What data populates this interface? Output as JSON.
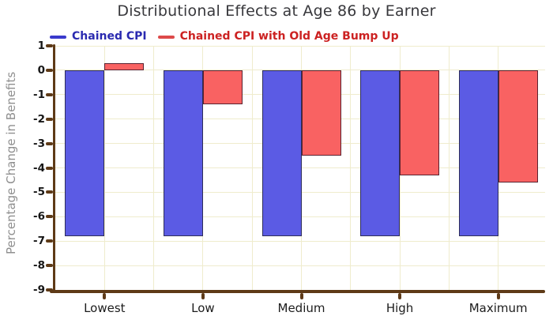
{
  "title": "Distributional Effects at Age 86 by Earner",
  "legend": {
    "items": [
      {
        "label": "Chained CPI",
        "text_color": "#2a2ab0",
        "dash_color": "#3a3acc"
      },
      {
        "label": "Chained CPI with Old Age Bump Up",
        "text_color": "#cc2222",
        "dash_color": "#dd4a4a"
      }
    ]
  },
  "chart_data": {
    "type": "bar",
    "title": "Distributional Effects at Age 86 by Earner",
    "categories": [
      "Lowest",
      "Low",
      "Medium",
      "High",
      "Maximum"
    ],
    "series": [
      {
        "name": "Chained CPI",
        "color": "#5b5be4",
        "border_color": "#2e2e5a",
        "values": [
          -6.8,
          -6.8,
          -6.8,
          -6.8,
          -6.8
        ]
      },
      {
        "name": "Chained CPI with Old Age Bump Up",
        "color": "#f96262",
        "border_color": "#5a2230",
        "values": [
          0.3,
          -1.4,
          -3.5,
          -4.3,
          -4.6
        ]
      }
    ],
    "xlabel": "",
    "ylabel": "Percentage Change in Benefits",
    "ylim": [
      -9,
      1
    ],
    "yticks": [
      1,
      0,
      -1,
      -2,
      -3,
      -4,
      -5,
      -6,
      -7,
      -8,
      -9
    ],
    "grid": true,
    "legend_position": "top"
  },
  "colors": {
    "axis": "#5e3a17",
    "gridline": "#efeccd",
    "background": "#ffffff",
    "title": "#38383c",
    "tick_label": "#161616",
    "x_label": "#1c1c1c",
    "y_axis_title": "#8f8f8f"
  }
}
